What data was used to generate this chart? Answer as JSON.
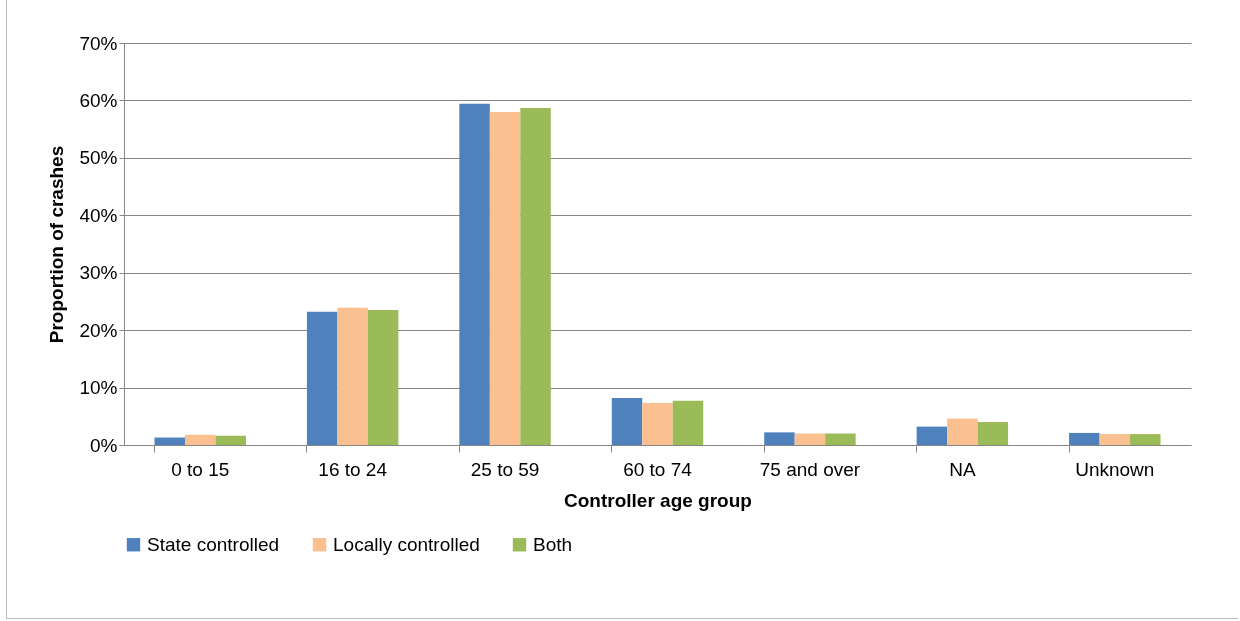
{
  "chart_data": {
    "type": "bar",
    "xlabel": "Controller age group",
    "ylabel": "Proportion of crashes",
    "categories": [
      "0 to 15",
      "16 to 24",
      "25 to 59",
      "60 to 74",
      "75 and over",
      "NA",
      "Unknown"
    ],
    "series": [
      {
        "name": "State controlled",
        "color": "#4f81bd",
        "values": [
          1.3,
          23.2,
          59.4,
          8.2,
          2.2,
          3.2,
          2.1
        ]
      },
      {
        "name": "Locally controlled",
        "color": "#fac090",
        "values": [
          1.8,
          23.9,
          58.0,
          7.3,
          2.0,
          4.6,
          1.9
        ]
      },
      {
        "name": "Both",
        "color": "#9bbb59",
        "values": [
          1.6,
          23.5,
          58.7,
          7.7,
          2.0,
          4.0,
          1.9
        ]
      }
    ],
    "ylim": [
      0,
      70
    ],
    "yticks": [
      {
        "value": 0,
        "label": "0%"
      },
      {
        "value": 10,
        "label": "10%"
      },
      {
        "value": 20,
        "label": "20%"
      },
      {
        "value": 30,
        "label": "30%"
      },
      {
        "value": 40,
        "label": "40%"
      },
      {
        "value": 50,
        "label": "50%"
      },
      {
        "value": 60,
        "label": "60%"
      },
      {
        "value": 70,
        "label": "70%"
      }
    ],
    "grid": "y",
    "legend": "bottom"
  }
}
